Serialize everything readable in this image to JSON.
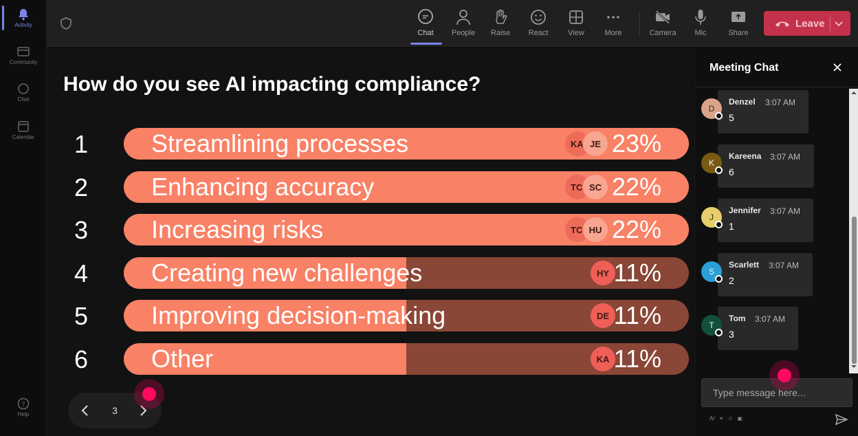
{
  "rail": {
    "items": [
      {
        "label": "Activity",
        "icon": "bell-icon"
      },
      {
        "label": "Community",
        "icon": "community-icon"
      },
      {
        "label": "Chat",
        "icon": "chat-icon"
      },
      {
        "label": "Calendar",
        "icon": "calendar-icon"
      }
    ],
    "help_label": "Help"
  },
  "toolbar": {
    "buttons": [
      {
        "label": "Chat",
        "icon": "chat-icon"
      },
      {
        "label": "People",
        "icon": "people-icon"
      },
      {
        "label": "Raise",
        "icon": "hand-icon"
      },
      {
        "label": "React",
        "icon": "smile-icon"
      },
      {
        "label": "View",
        "icon": "grid-icon"
      },
      {
        "label": "More",
        "icon": "more-icon"
      },
      {
        "label": "Camera",
        "icon": "camera-off-icon"
      },
      {
        "label": "Mic",
        "icon": "mic-icon"
      },
      {
        "label": "Share",
        "icon": "share-icon"
      }
    ],
    "leave_label": "Leave"
  },
  "poll": {
    "question": "How do you see AI impacting compliance?",
    "options": [
      {
        "num": "1",
        "label": "Streamlining processes",
        "pct_label": "23%",
        "pct": 23,
        "avatars": [
          "KA",
          "JE"
        ]
      },
      {
        "num": "2",
        "label": "Enhancing accuracy",
        "pct_label": "22%",
        "pct": 22,
        "avatars": [
          "TC",
          "SC"
        ]
      },
      {
        "num": "3",
        "label": "Increasing risks",
        "pct_label": "22%",
        "pct": 22,
        "avatars": [
          "TC",
          "HU"
        ]
      },
      {
        "num": "4",
        "label": "Creating new challenges",
        "pct_label": "11%",
        "pct": 11,
        "avatars": [
          "HY"
        ]
      },
      {
        "num": "5",
        "label": "Improving decision-making",
        "pct_label": "11%",
        "pct": 11,
        "avatars": [
          "DE"
        ]
      },
      {
        "num": "6",
        "label": "Other",
        "pct_label": "11%",
        "pct": 11,
        "avatars": [
          "KA"
        ]
      }
    ],
    "page": "3"
  },
  "chat": {
    "title": "Meeting Chat",
    "messages": [
      {
        "initial": "D",
        "name": "Denzel",
        "time": "3:07 AM",
        "text": "5",
        "color": "#d9a38a"
      },
      {
        "initial": "K",
        "name": "Kareena",
        "time": "3:07 AM",
        "text": "6",
        "color": "#7a5a12"
      },
      {
        "initial": "J",
        "name": "Jennifer",
        "time": "3:07 AM",
        "text": "1",
        "color": "#e6cf6a"
      },
      {
        "initial": "S",
        "name": "Scarlett",
        "time": "3:07 AM",
        "text": "2",
        "color": "#2a9fd8"
      },
      {
        "initial": "T",
        "name": "Tom",
        "time": "3:07 AM",
        "text": "3",
        "color": "#12503a"
      }
    ],
    "input_placeholder": "Type message here..."
  }
}
